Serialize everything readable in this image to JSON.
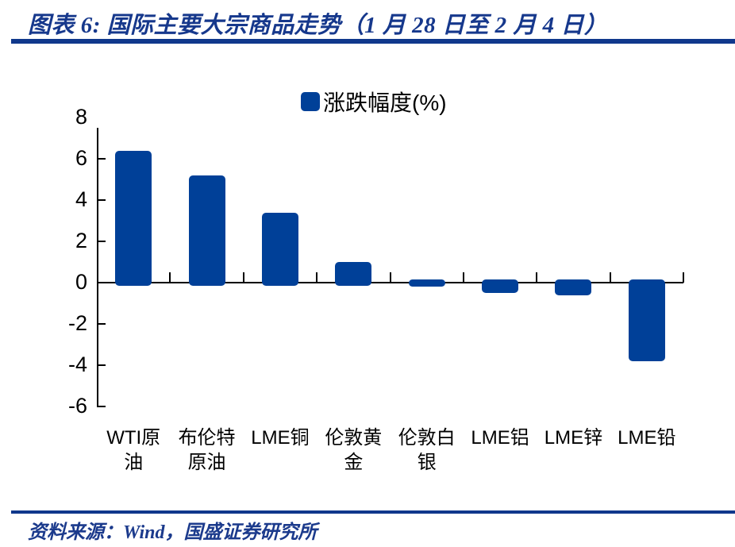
{
  "header": {
    "title": "图表 6:  国际主要大宗商品走势（1 月 28 日至 2 月 4 日）"
  },
  "legend": {
    "label": "涨跌幅度(%)"
  },
  "source": {
    "text": "资料来源：Wind，国盛证券研究所"
  },
  "colors": {
    "bar": "#004098",
    "navy_rule": "#10388c",
    "title_text": "#16388c",
    "axis": "#000000"
  },
  "chart_data": {
    "type": "bar",
    "title": "国际主要大宗商品走势（1 月 28 日至 2 月 4 日）",
    "legend_entries": [
      "涨跌幅度(%)"
    ],
    "legend_position": "top-center",
    "categories": [
      "WTI原油",
      "布伦特原油",
      "LME铜",
      "伦敦黄金",
      "伦敦白银",
      "LME铝",
      "LME锌",
      "LME铅"
    ],
    "category_display": [
      "WTI原\n油",
      "布伦特\n原油",
      "LME铜",
      "伦敦黄\n金",
      "伦敦白\n银",
      "LME铝",
      "LME锌",
      "LME铅"
    ],
    "values": [
      6.4,
      5.2,
      3.4,
      1.0,
      -0.2,
      -0.5,
      -0.6,
      -3.8
    ],
    "xlabel": "",
    "ylabel": "",
    "ylim": [
      -6,
      8
    ],
    "yticks": [
      8,
      6,
      4,
      2,
      0,
      -2,
      -4,
      -6
    ],
    "grid": false,
    "bar_color": "#004098"
  }
}
